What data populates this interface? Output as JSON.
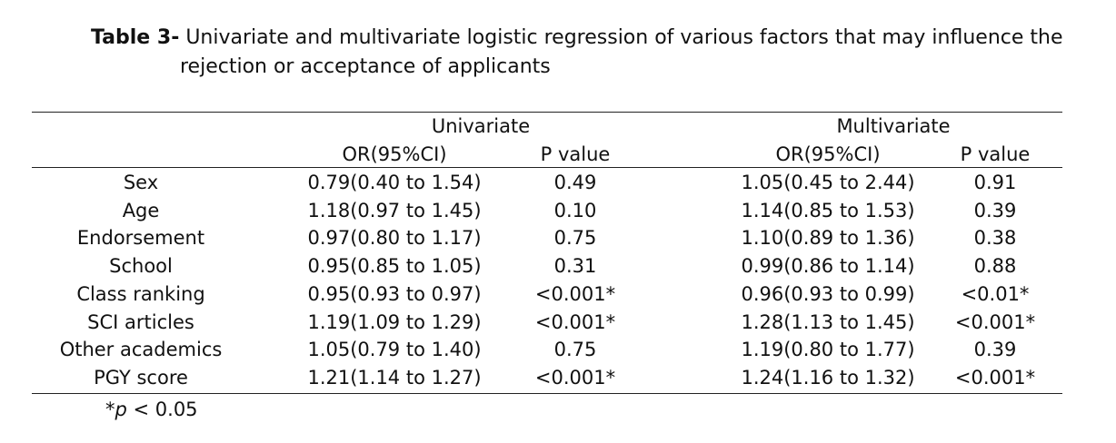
{
  "caption": {
    "label": "Table 3-",
    "text_line1": " Univariate and multivariate logistic regression of various factors that may influence the",
    "text_line2": "rejection or acceptance of applicants"
  },
  "table": {
    "group_headers": {
      "univariate": "Univariate",
      "multivariate": "Multivariate"
    },
    "column_headers": {
      "uni_or": "OR(95%CI)",
      "uni_p": "P value",
      "multi_or": "OR(95%CI)",
      "multi_p": "P value"
    },
    "rows": [
      {
        "factor": "Sex",
        "uni_or": "0.79(0.40 to 1.54)",
        "uni_p": "0.49",
        "multi_or": "1.05(0.45 to 2.44)",
        "multi_p": "0.91"
      },
      {
        "factor": "Age",
        "uni_or": "1.18(0.97 to 1.45)",
        "uni_p": "0.10",
        "multi_or": "1.14(0.85 to 1.53)",
        "multi_p": "0.39"
      },
      {
        "factor": "Endorsement",
        "uni_or": "0.97(0.80 to 1.17)",
        "uni_p": "0.75",
        "multi_or": "1.10(0.89 to 1.36)",
        "multi_p": "0.38"
      },
      {
        "factor": "School",
        "uni_or": "0.95(0.85 to 1.05)",
        "uni_p": "0.31",
        "multi_or": "0.99(0.86 to 1.14)",
        "multi_p": "0.88"
      },
      {
        "factor": "Class ranking",
        "uni_or": "0.95(0.93 to 0.97)",
        "uni_p": "<0.001*",
        "multi_or": "0.96(0.93 to 0.99)",
        "multi_p": "<0.01*"
      },
      {
        "factor": "SCI articles",
        "uni_or": "1.19(1.09 to 1.29)",
        "uni_p": "<0.001*",
        "multi_or": "1.28(1.13 to 1.45)",
        "multi_p": "<0.001*"
      },
      {
        "factor": "Other academics",
        "uni_or": "1.05(0.79 to 1.40)",
        "uni_p": "0.75",
        "multi_or": "1.19(0.80 to 1.77)",
        "multi_p": "0.39"
      },
      {
        "factor": "PGY score",
        "uni_or": "1.21(1.14 to 1.27)",
        "uni_p": "<0.001*",
        "multi_or": "1.24(1.16 to 1.32)",
        "multi_p": "<0.001*"
      }
    ]
  },
  "footnote": {
    "star": "*",
    "p": "p",
    "rest": " < 0.05"
  }
}
